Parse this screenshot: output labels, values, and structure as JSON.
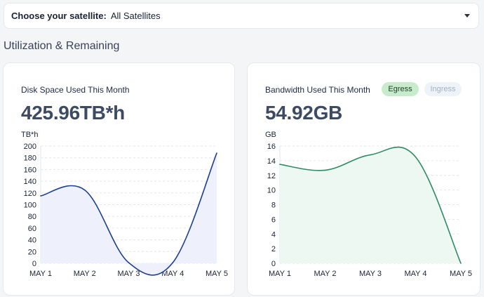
{
  "satellite": {
    "label": "Choose your satellite:",
    "value": "All Satellites"
  },
  "section_title": "Utilization & Remaining",
  "disk": {
    "title": "Disk Space Used This Month",
    "value": "425.96TB*h"
  },
  "bandwidth": {
    "title": "Bandwidth Used This Month",
    "value": "54.92GB",
    "tabs": {
      "egress": "Egress",
      "ingress": "Ingress"
    }
  },
  "chart_data": [
    {
      "type": "area",
      "categories": [
        "MAY 1",
        "MAY 2",
        "MAY 3",
        "MAY 4",
        "MAY 5"
      ],
      "series": [
        {
          "values": [
            115,
            125,
            1,
            1,
            188
          ]
        }
      ],
      "ylabel": "TB*h",
      "ylim": [
        0,
        200
      ],
      "yticks": [
        0,
        20,
        40,
        60,
        80,
        100,
        120,
        140,
        160,
        180,
        200
      ],
      "grid": true,
      "color": "#1c3f94",
      "fill": "#eef1fb"
    },
    {
      "type": "area",
      "categories": [
        "MAY 1",
        "MAY 2",
        "MAY 3",
        "MAY 4",
        "MAY 5"
      ],
      "series": [
        {
          "values": [
            13.5,
            12.7,
            14.8,
            14.5,
            0
          ]
        }
      ],
      "ylabel": "GB",
      "ylim": [
        0,
        16
      ],
      "yticks": [
        0,
        2,
        4,
        6,
        8,
        10,
        12,
        14,
        16
      ],
      "grid": true,
      "color": "#2e8b63",
      "fill": "#edf8f2"
    }
  ]
}
